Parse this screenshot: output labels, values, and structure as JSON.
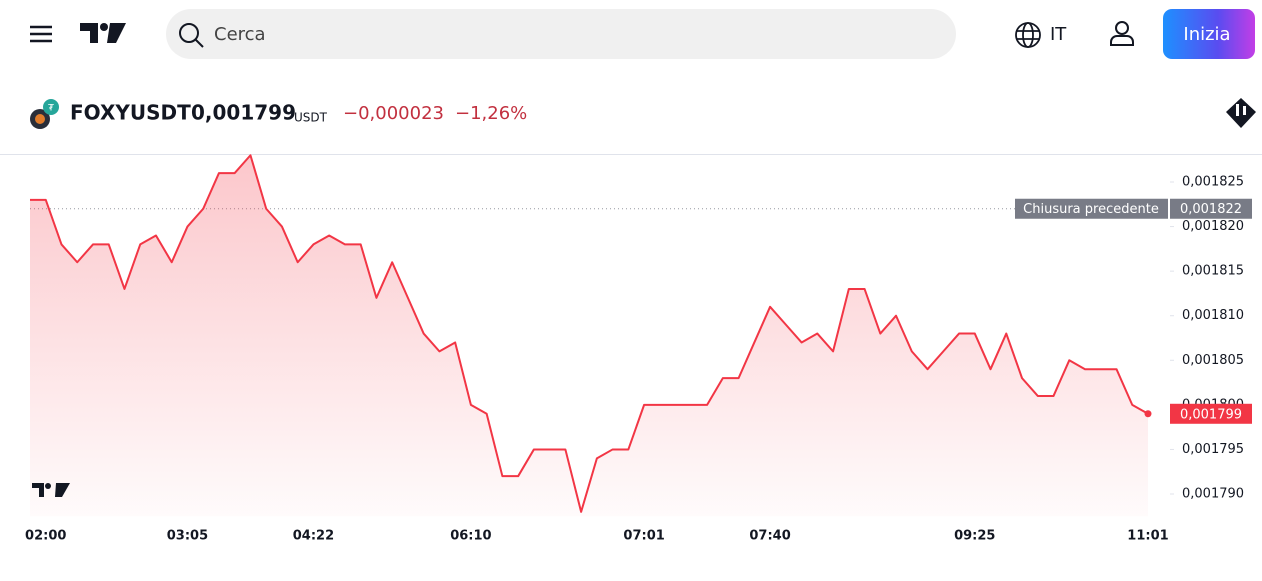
{
  "header": {
    "search_placeholder": "Cerca",
    "language": "IT",
    "cta": "Inizia"
  },
  "symbol": {
    "name": "FOXYUSDT",
    "price": "0,001799",
    "currency": "USDT",
    "change": "−0,000023",
    "change_percent": "−1,26%"
  },
  "chart_data": {
    "type": "area",
    "color": "#f23645",
    "categories": [
      null,
      "02:00",
      null,
      null,
      null,
      null,
      null,
      null,
      null,
      null,
      "03:05",
      null,
      null,
      null,
      null,
      null,
      null,
      null,
      "04:22",
      null,
      null,
      null,
      null,
      null,
      null,
      null,
      null,
      null,
      "06:10",
      null,
      null,
      null,
      null,
      null,
      null,
      null,
      null,
      null,
      null,
      "07:01",
      null,
      null,
      null,
      null,
      null,
      null,
      null,
      "07:40",
      null,
      null,
      null,
      null,
      null,
      null,
      null,
      null,
      null,
      null,
      null,
      null,
      "09:25",
      null,
      null,
      null,
      null,
      null,
      null,
      null,
      null,
      null,
      null,
      "11:01"
    ],
    "values": [
      0.001823,
      0.001823,
      0.001818,
      0.001816,
      0.001818,
      0.001818,
      0.001813,
      0.001818,
      0.001819,
      0.001816,
      0.00182,
      0.001822,
      0.001826,
      0.001826,
      0.001828,
      0.001822,
      0.00182,
      0.001816,
      0.001818,
      0.001819,
      0.001818,
      0.001818,
      0.001812,
      0.001816,
      0.001812,
      0.001808,
      0.001806,
      0.001807,
      0.0018,
      0.001799,
      0.001792,
      0.001792,
      0.001795,
      0.001795,
      0.001795,
      0.001788,
      0.001794,
      0.001795,
      0.001795,
      0.0018,
      0.0018,
      0.0018,
      0.0018,
      0.0018,
      0.001803,
      0.001803,
      0.001807,
      0.001811,
      0.001809,
      0.001807,
      0.001808,
      0.001806,
      0.001813,
      0.001813,
      0.001808,
      0.00181,
      0.001806,
      0.001804,
      0.001806,
      0.001808,
      0.001808,
      0.001804,
      0.001808,
      0.001803,
      0.001801,
      0.001801,
      0.001805,
      0.001804,
      0.001804,
      0.001804,
      0.0018,
      0.001799
    ],
    "last_label": "0,001799",
    "ylim": [
      0.0017875,
      0.0018285
    ],
    "yticks": [
      {
        "value": 0.00179,
        "label": "0,001790"
      },
      {
        "value": 0.001795,
        "label": "0,001795"
      },
      {
        "value": 0.0018,
        "label": "0,001800"
      },
      {
        "value": 0.001805,
        "label": "0,001805"
      },
      {
        "value": 0.00181,
        "label": "0,001810"
      },
      {
        "value": 0.001815,
        "label": "0,001815"
      },
      {
        "value": 0.00182,
        "label": "0,001820"
      },
      {
        "value": 0.001825,
        "label": "0,001825"
      }
    ],
    "previous_close": {
      "label": "Chiusura precedente",
      "value": 0.001822,
      "value_label": "0,001822"
    }
  }
}
